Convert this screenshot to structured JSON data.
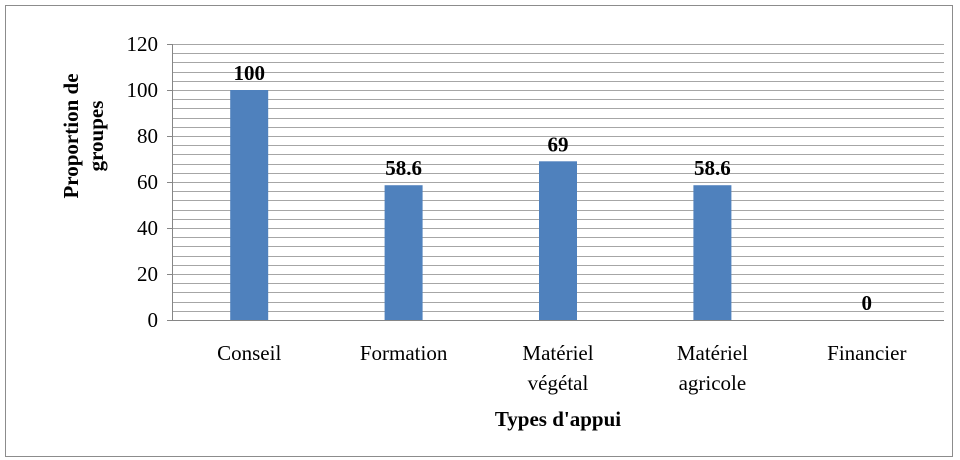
{
  "chart_data": {
    "type": "bar",
    "categories": [
      [
        "Conseil"
      ],
      [
        "Formation"
      ],
      [
        "Matériel",
        "végétal"
      ],
      [
        "Matériel",
        "agricole"
      ],
      [
        "Financier"
      ]
    ],
    "values": [
      100,
      58.6,
      69,
      58.6,
      0
    ],
    "data_labels": [
      "100",
      "58.6",
      "69",
      "58.6",
      "0"
    ],
    "xlabel": "Types d'appui",
    "ylabel": [
      "Proportion de",
      "groupes"
    ],
    "ylim": [
      0,
      120
    ],
    "y_ticks": [
      0,
      20,
      40,
      60,
      80,
      100,
      120
    ],
    "grid": true,
    "bar_color": "#4f81bd",
    "grid_color": "#a6a6a6"
  }
}
